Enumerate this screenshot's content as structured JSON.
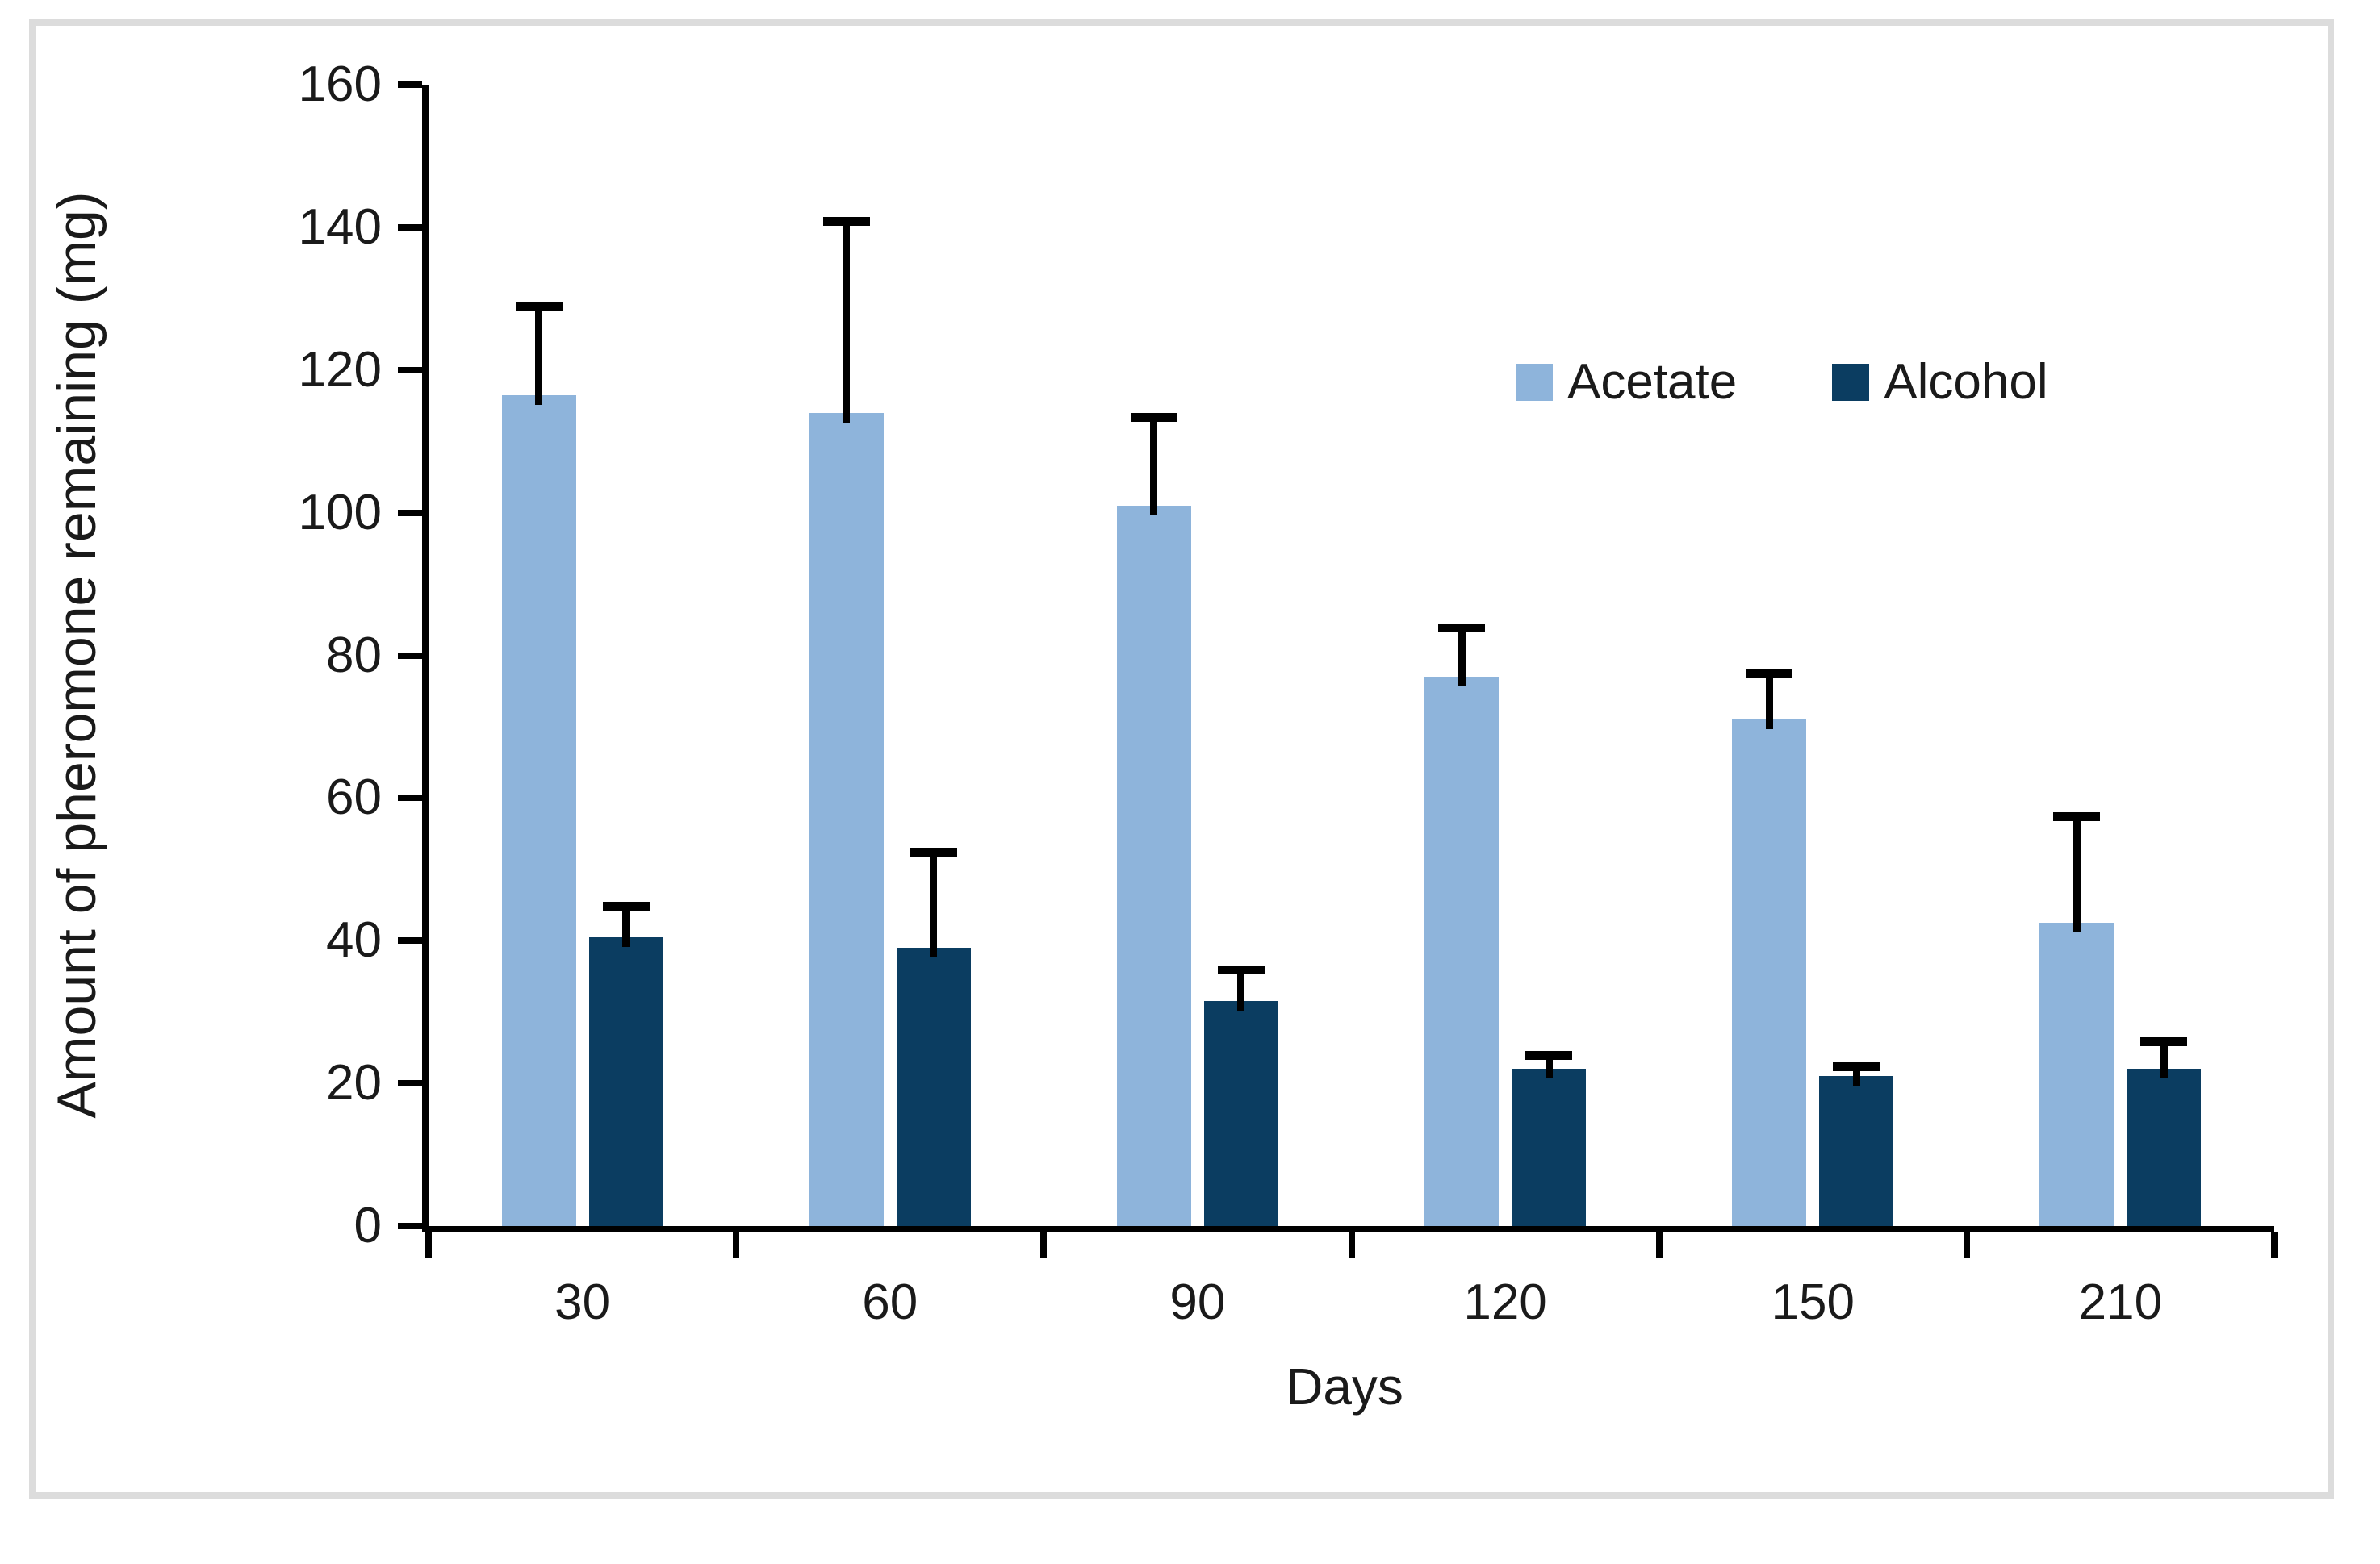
{
  "figure": {
    "x_axis_title": "Days",
    "y_axis_title": "Amount of pheromone remaining (mg)"
  },
  "legend": {
    "items": [
      {
        "label": "Acetate",
        "color": "#8EB4DB"
      },
      {
        "label": "Alcohol",
        "color": "#0B3D61"
      }
    ]
  },
  "chart_data": {
    "type": "bar",
    "title": "",
    "xlabel": "Days",
    "ylabel": "Amount of pheromone remaining (mg)",
    "categories": [
      "30",
      "60",
      "90",
      "120",
      "150",
      "210"
    ],
    "series": [
      {
        "name": "Acetate",
        "color": "#8EB4DB",
        "values": [
          116.5,
          114,
          101,
          77,
          71,
          42.5
        ],
        "error_up": [
          13,
          27.5,
          13,
          7.5,
          7,
          15.5
        ]
      },
      {
        "name": "Alcohol",
        "color": "#0B3D61",
        "values": [
          40.5,
          39,
          31.5,
          22,
          21,
          22
        ],
        "error_up": [
          5,
          14,
          5,
          2.5,
          2,
          4.5
        ]
      }
    ],
    "ylim": [
      0,
      160
    ],
    "ytick_step": 20,
    "grid": false,
    "error_bars": "plus-direction-with-cap",
    "legend_position": "inside-upper-right",
    "axis_color": "#000000",
    "background_color": "#ffffff",
    "frame_border_color": "#dcdcdc"
  }
}
